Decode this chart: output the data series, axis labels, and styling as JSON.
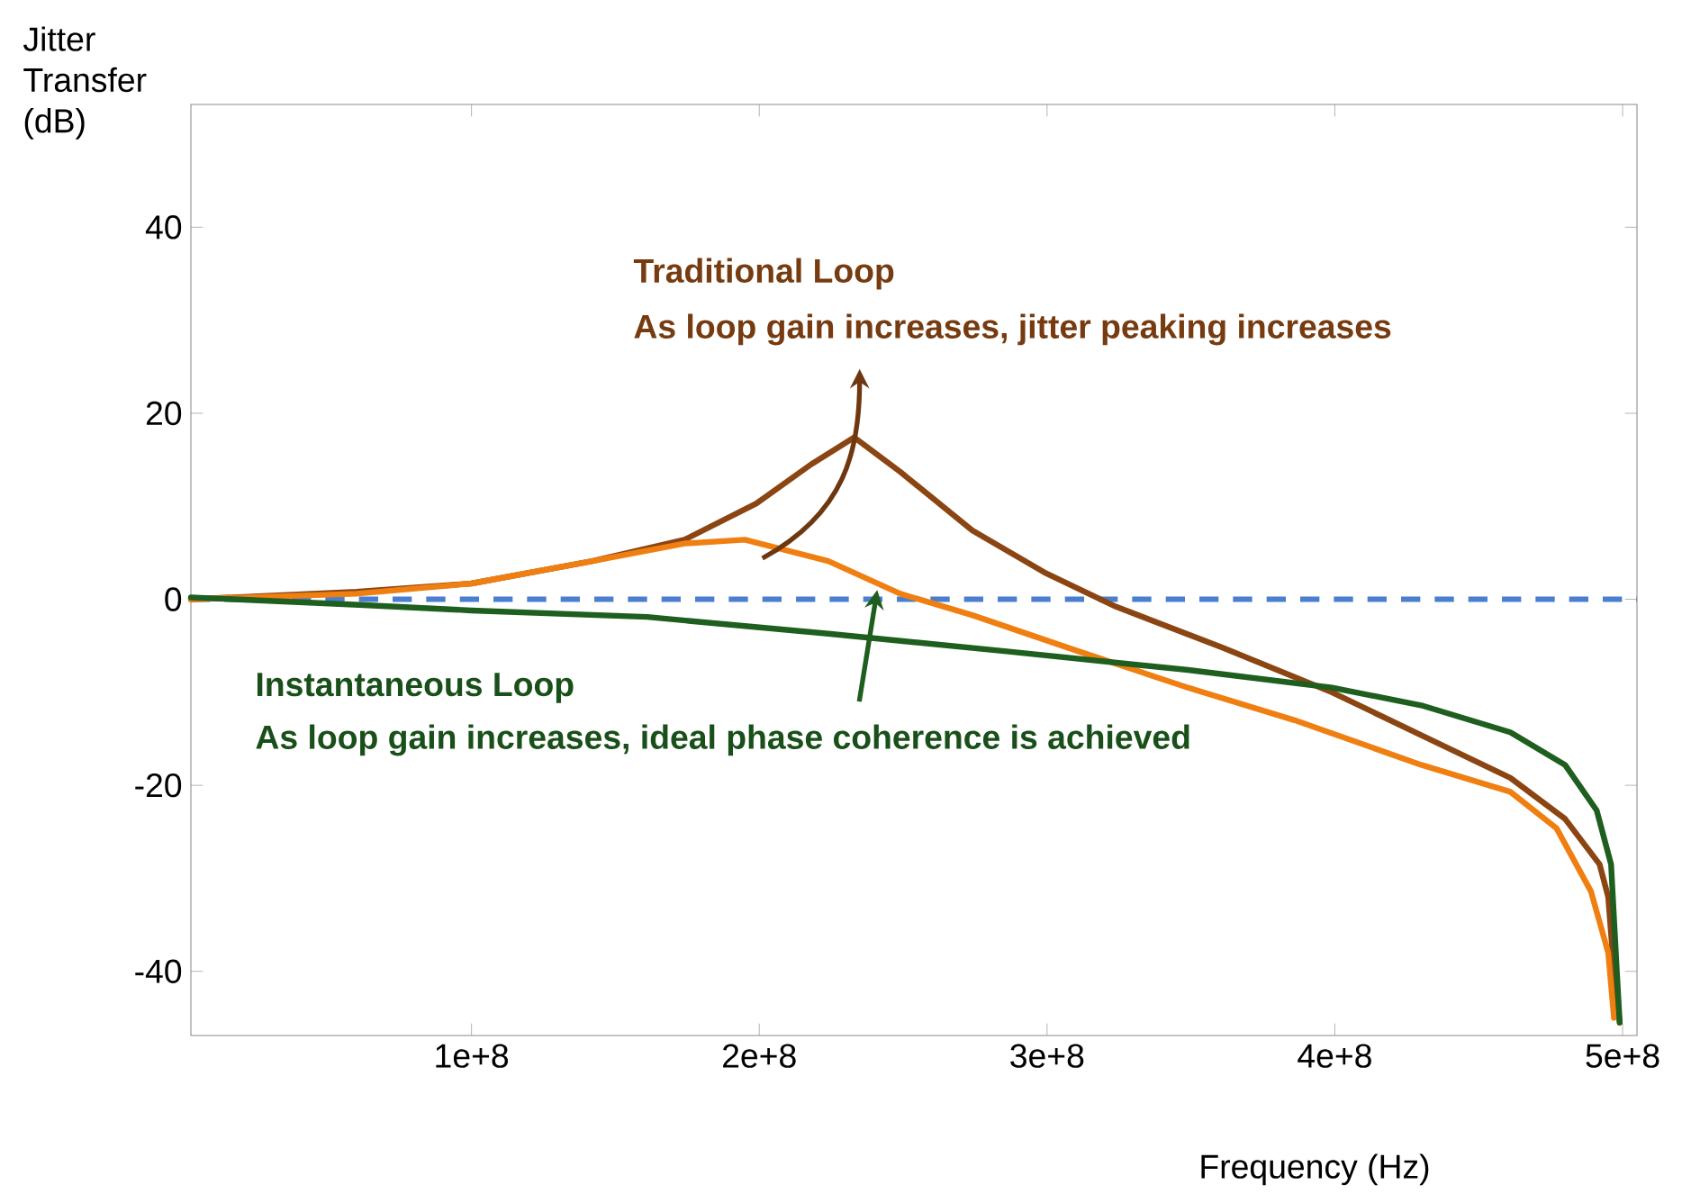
{
  "chart_data": {
    "type": "line",
    "xlabel": "Frequency (Hz)",
    "ylabel": "Jitter Transfer (dB)",
    "xlim": [
      2500000,
      505000000
    ],
    "ylim": [
      -46.9,
      53.2
    ],
    "xticks": [
      {
        "value": 100000000,
        "label": "1e+8"
      },
      {
        "value": 200000000,
        "label": "2e+8"
      },
      {
        "value": 300000000,
        "label": "3e+8"
      },
      {
        "value": 400000000,
        "label": "4e+8"
      },
      {
        "value": 500000000,
        "label": "5e+8"
      }
    ],
    "yticks": [
      -40,
      -20,
      0,
      20,
      40
    ],
    "grid": false,
    "marker": "none",
    "line_style": "solid",
    "series": [
      {
        "color": "#8b4513",
        "x": [
          2500000,
          60000000,
          100000000,
          142000000,
          174000000,
          199000000,
          218000000,
          233000000,
          249000000,
          274000000,
          299000000,
          324000000,
          361000000,
          399000000,
          436000000,
          461000000,
          480000000,
          492000000,
          495000000,
          497000000,
          499000000
        ],
        "values": [
          0,
          0.8,
          1.7,
          4.1,
          6.4,
          10.3,
          14.5,
          17.4,
          13.7,
          7.4,
          2.9,
          -0.8,
          -5.2,
          -10,
          -15.5,
          -19.2,
          -23.6,
          -28.5,
          -32,
          -40,
          -45.5
        ]
      },
      {
        "color": "#f07f12",
        "x": [
          2500000,
          60000000,
          100000000,
          142000000,
          174000000,
          195000000,
          224000000,
          249000000,
          274000000,
          311000000,
          349000000,
          386000000,
          430000000,
          461000000,
          477000000,
          489000000,
          495000000,
          497000000
        ],
        "values": [
          0,
          0.6,
          1.7,
          4.1,
          6.0,
          6.4,
          4.1,
          0.6,
          -1.7,
          -5.6,
          -9.5,
          -13,
          -17.8,
          -20.7,
          -24.6,
          -31.4,
          -38,
          -45
        ]
      },
      {
        "color": "#1e5e1e",
        "x": [
          2500000,
          61000000,
          100000000,
          161000000,
          224000000,
          286000000,
          349000000,
          399000000,
          430000000,
          461000000,
          480000000,
          491000000,
          496000000,
          498000000,
          499000000
        ],
        "values": [
          0.2,
          -0.6,
          -1.2,
          -1.9,
          -3.7,
          -5.6,
          -7.6,
          -9.5,
          -11.4,
          -14.3,
          -17.8,
          -22.7,
          -28.5,
          -40,
          -45.5
        ]
      }
    ],
    "ref_lines": [
      {
        "axis": "y",
        "value": 0,
        "color": "#4a7fcf",
        "line_style": "dashed"
      }
    ],
    "annotations": [
      "Traditional Loop",
      {
        "text": "As loop gain increases, jitter peaking increases",
        "x": 233000000,
        "y": 17.4
      },
      "Instantaneous Loop",
      {
        "text": "As loop gain increases, ideal phase coherence is achieved",
        "x": 241000000,
        "y": 1
      }
    ]
  }
}
